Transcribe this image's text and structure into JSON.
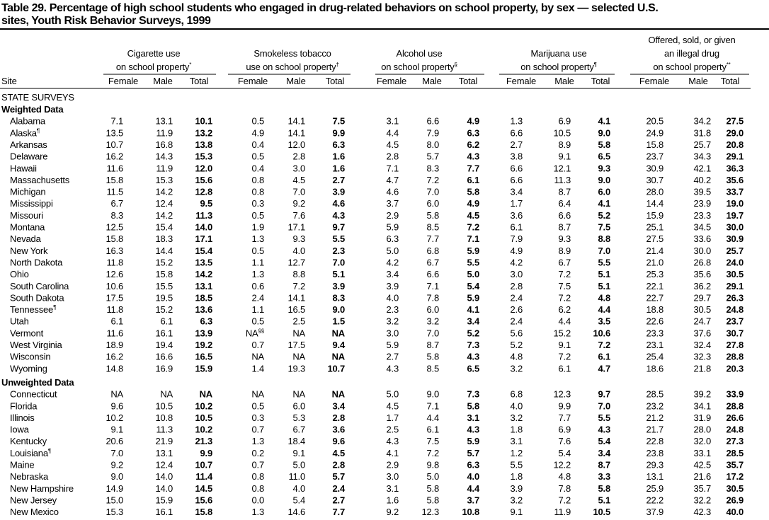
{
  "title_lines": [
    "Table 29. Percentage of high school students who engaged in drug-related behaviors on school property, by sex — selected U.S.",
    "sites, Youth Risk Behavior Surveys, 1999"
  ],
  "table": {
    "site_header": "Site",
    "groups": [
      {
        "lines": [
          "Cigarette use",
          "on school property"
        ],
        "mark": "*"
      },
      {
        "lines": [
          "Smokeless tobacco",
          "use on school property"
        ],
        "mark": "†"
      },
      {
        "lines": [
          "Alcohol use",
          "on school property"
        ],
        "mark": "§"
      },
      {
        "lines": [
          "Marijuana use",
          "on school property"
        ],
        "mark": "¶"
      },
      {
        "lines": [
          "Offered, sold, or given",
          "an illegal drug",
          "on school property"
        ],
        "mark": "**"
      }
    ],
    "subheaders": [
      "Female",
      "Male",
      "Total"
    ],
    "survey_label": "STATE SURVEYS",
    "sections": [
      {
        "label": "Weighted Data",
        "rows": [
          {
            "site": "Alabama",
            "values": [
              "7.1",
              "13.1",
              "10.1",
              "0.5",
              "14.1",
              "7.5",
              "3.1",
              "6.6",
              "4.9",
              "1.3",
              "6.9",
              "4.1",
              "20.5",
              "34.2",
              "27.5"
            ]
          },
          {
            "site": "Alaska",
            "mark": "¶",
            "values": [
              "13.5",
              "11.9",
              "13.2",
              "4.9",
              "14.1",
              "9.9",
              "4.4",
              "7.9",
              "6.3",
              "6.6",
              "10.5",
              "9.0",
              "24.9",
              "31.8",
              "29.0"
            ]
          },
          {
            "site": "Arkansas",
            "values": [
              "10.7",
              "16.8",
              "13.8",
              "0.4",
              "12.0",
              "6.3",
              "4.5",
              "8.0",
              "6.2",
              "2.7",
              "8.9",
              "5.8",
              "15.8",
              "25.7",
              "20.8"
            ]
          },
          {
            "site": "Delaware",
            "values": [
              "16.2",
              "14.3",
              "15.3",
              "0.5",
              "2.8",
              "1.6",
              "2.8",
              "5.7",
              "4.3",
              "3.8",
              "9.1",
              "6.5",
              "23.7",
              "34.3",
              "29.1"
            ]
          },
          {
            "site": "Hawaii",
            "values": [
              "11.6",
              "11.9",
              "12.0",
              "0.4",
              "3.0",
              "1.6",
              "7.1",
              "8.3",
              "7.7",
              "6.6",
              "12.1",
              "9.3",
              "30.9",
              "42.1",
              "36.3"
            ]
          },
          {
            "site": "Massachusetts",
            "values": [
              "15.8",
              "15.3",
              "15.6",
              "0.8",
              "4.5",
              "2.7",
              "4.7",
              "7.2",
              "6.1",
              "6.6",
              "11.3",
              "9.0",
              "30.7",
              "40.2",
              "35.6"
            ]
          },
          {
            "site": "Michigan",
            "values": [
              "11.5",
              "14.2",
              "12.8",
              "0.8",
              "7.0",
              "3.9",
              "4.6",
              "7.0",
              "5.8",
              "3.4",
              "8.7",
              "6.0",
              "28.0",
              "39.5",
              "33.7"
            ]
          },
          {
            "site": "Mississippi",
            "values": [
              "6.7",
              "12.4",
              "9.5",
              "0.3",
              "9.2",
              "4.6",
              "3.7",
              "6.0",
              "4.9",
              "1.7",
              "6.4",
              "4.1",
              "14.4",
              "23.9",
              "19.0"
            ]
          },
          {
            "site": "Missouri",
            "values": [
              "8.3",
              "14.2",
              "11.3",
              "0.5",
              "7.6",
              "4.3",
              "2.9",
              "5.8",
              "4.5",
              "3.6",
              "6.6",
              "5.2",
              "15.9",
              "23.3",
              "19.7"
            ]
          },
          {
            "site": "Montana",
            "values": [
              "12.5",
              "15.4",
              "14.0",
              "1.9",
              "17.1",
              "9.7",
              "5.9",
              "8.5",
              "7.2",
              "6.1",
              "8.7",
              "7.5",
              "25.1",
              "34.5",
              "30.0"
            ]
          },
          {
            "site": "Nevada",
            "values": [
              "15.8",
              "18.3",
              "17.1",
              "1.3",
              "9.3",
              "5.5",
              "6.3",
              "7.7",
              "7.1",
              "7.9",
              "9.3",
              "8.8",
              "27.5",
              "33.6",
              "30.9"
            ]
          },
          {
            "site": "New York",
            "values": [
              "16.3",
              "14.4",
              "15.4",
              "0.5",
              "4.0",
              "2.3",
              "5.0",
              "6.8",
              "5.9",
              "4.9",
              "8.9",
              "7.0",
              "21.4",
              "30.0",
              "25.7"
            ]
          },
          {
            "site": "North Dakota",
            "values": [
              "11.8",
              "15.2",
              "13.5",
              "1.1",
              "12.7",
              "7.0",
              "4.2",
              "6.7",
              "5.5",
              "4.2",
              "6.7",
              "5.5",
              "21.0",
              "26.8",
              "24.0"
            ]
          },
          {
            "site": "Ohio",
            "values": [
              "12.6",
              "15.8",
              "14.2",
              "1.3",
              "8.8",
              "5.1",
              "3.4",
              "6.6",
              "5.0",
              "3.0",
              "7.2",
              "5.1",
              "25.3",
              "35.6",
              "30.5"
            ]
          },
          {
            "site": "South Carolina",
            "values": [
              "10.6",
              "15.5",
              "13.1",
              "0.6",
              "7.2",
              "3.9",
              "3.9",
              "7.1",
              "5.4",
              "2.8",
              "7.5",
              "5.1",
              "22.1",
              "36.2",
              "29.1"
            ]
          },
          {
            "site": "South Dakota",
            "values": [
              "17.5",
              "19.5",
              "18.5",
              "2.4",
              "14.1",
              "8.3",
              "4.0",
              "7.8",
              "5.9",
              "2.4",
              "7.2",
              "4.8",
              "22.7",
              "29.7",
              "26.3"
            ]
          },
          {
            "site": "Tennessee",
            "mark": "¶",
            "values": [
              "11.8",
              "15.2",
              "13.6",
              "1.1",
              "16.5",
              "9.0",
              "2.3",
              "6.0",
              "4.1",
              "2.6",
              "6.2",
              "4.4",
              "18.8",
              "30.5",
              "24.8"
            ]
          },
          {
            "site": "Utah",
            "values": [
              "6.1",
              "6.1",
              "6.3",
              "0.5",
              "2.5",
              "1.5",
              "3.2",
              "3.2",
              "3.4",
              "2.4",
              "4.4",
              "3.5",
              "22.6",
              "24.7",
              "23.7"
            ]
          },
          {
            "site": "Vermont",
            "values": [
              "11.6",
              "16.1",
              "13.9",
              {
                "text": "NA",
                "mark": "§§"
              },
              "NA",
              "NA",
              "3.0",
              "7.0",
              "5.2",
              "5.6",
              "15.2",
              "10.6",
              "23.3",
              "37.6",
              "30.7"
            ]
          },
          {
            "site": "West Virginia",
            "values": [
              "18.9",
              "19.4",
              "19.2",
              "0.7",
              "17.5",
              "9.4",
              "5.9",
              "8.7",
              "7.3",
              "5.2",
              "9.1",
              "7.2",
              "23.1",
              "32.4",
              "27.8"
            ]
          },
          {
            "site": "Wisconsin",
            "values": [
              "16.2",
              "16.6",
              "16.5",
              "NA",
              "NA",
              "NA",
              "2.7",
              "5.8",
              "4.3",
              "4.8",
              "7.2",
              "6.1",
              "25.4",
              "32.3",
              "28.8"
            ]
          },
          {
            "site": "Wyoming",
            "values": [
              "14.8",
              "16.9",
              "15.9",
              "1.4",
              "19.3",
              "10.7",
              "4.3",
              "8.5",
              "6.5",
              "3.2",
              "6.1",
              "4.7",
              "18.6",
              "21.8",
              "20.3"
            ]
          }
        ]
      },
      {
        "label": "Unweighted Data",
        "rows": [
          {
            "site": "Connecticut",
            "values": [
              "NA",
              "NA",
              "NA",
              "NA",
              "NA",
              "NA",
              "5.0",
              "9.0",
              "7.3",
              "6.8",
              "12.3",
              "9.7",
              "28.5",
              "39.2",
              "33.9"
            ]
          },
          {
            "site": "Florida",
            "values": [
              "9.6",
              "10.5",
              "10.2",
              "0.5",
              "6.0",
              "3.4",
              "4.5",
              "7.1",
              "5.8",
              "4.0",
              "9.9",
              "7.0",
              "23.2",
              "34.1",
              "28.8"
            ]
          },
          {
            "site": "Illinois",
            "values": [
              "10.2",
              "10.8",
              "10.5",
              "0.3",
              "5.3",
              "2.8",
              "1.7",
              "4.4",
              "3.1",
              "3.2",
              "7.7",
              "5.5",
              "21.2",
              "31.9",
              "26.6"
            ]
          },
          {
            "site": "Iowa",
            "values": [
              "9.1",
              "11.3",
              "10.2",
              "0.7",
              "6.7",
              "3.6",
              "2.5",
              "6.1",
              "4.3",
              "1.8",
              "6.9",
              "4.3",
              "21.7",
              "28.0",
              "24.8"
            ]
          },
          {
            "site": "Kentucky",
            "values": [
              "20.6",
              "21.9",
              "21.3",
              "1.3",
              "18.4",
              "9.6",
              "4.3",
              "7.5",
              "5.9",
              "3.1",
              "7.6",
              "5.4",
              "22.8",
              "32.0",
              "27.3"
            ]
          },
          {
            "site": "Louisiana",
            "mark": "¶",
            "values": [
              "7.0",
              "13.1",
              "9.9",
              "0.2",
              "9.1",
              "4.5",
              "4.1",
              "7.2",
              "5.7",
              "1.2",
              "5.4",
              "3.4",
              "23.8",
              "33.1",
              "28.5"
            ]
          },
          {
            "site": "Maine",
            "values": [
              "9.2",
              "12.4",
              "10.7",
              "0.7",
              "5.0",
              "2.8",
              "2.9",
              "9.8",
              "6.3",
              "5.5",
              "12.2",
              "8.7",
              "29.3",
              "42.5",
              "35.7"
            ]
          },
          {
            "site": "Nebraska",
            "values": [
              "9.0",
              "14.0",
              "11.4",
              "0.8",
              "11.0",
              "5.7",
              "3.0",
              "5.0",
              "4.0",
              "1.8",
              "4.8",
              "3.3",
              "13.1",
              "21.6",
              "17.2"
            ]
          },
          {
            "site": "New Hampshire",
            "values": [
              "14.9",
              "14.0",
              "14.5",
              "0.8",
              "4.0",
              "2.4",
              "3.1",
              "5.8",
              "4.4",
              "3.9",
              "7.8",
              "5.8",
              "25.9",
              "35.7",
              "30.5"
            ]
          },
          {
            "site": "New Jersey",
            "values": [
              "15.0",
              "15.9",
              "15.6",
              "0.0",
              "5.4",
              "2.7",
              "1.6",
              "5.8",
              "3.7",
              "3.2",
              "7.2",
              "5.1",
              "22.2",
              "32.2",
              "26.9"
            ]
          },
          {
            "site": "New Mexico",
            "values": [
              "15.3",
              "16.1",
              "15.8",
              "1.3",
              "14.6",
              "7.7",
              "9.2",
              "12.3",
              "10.8",
              "9.1",
              "11.9",
              "10.5",
              "37.9",
              "42.3",
              "40.0"
            ]
          }
        ]
      }
    ]
  }
}
